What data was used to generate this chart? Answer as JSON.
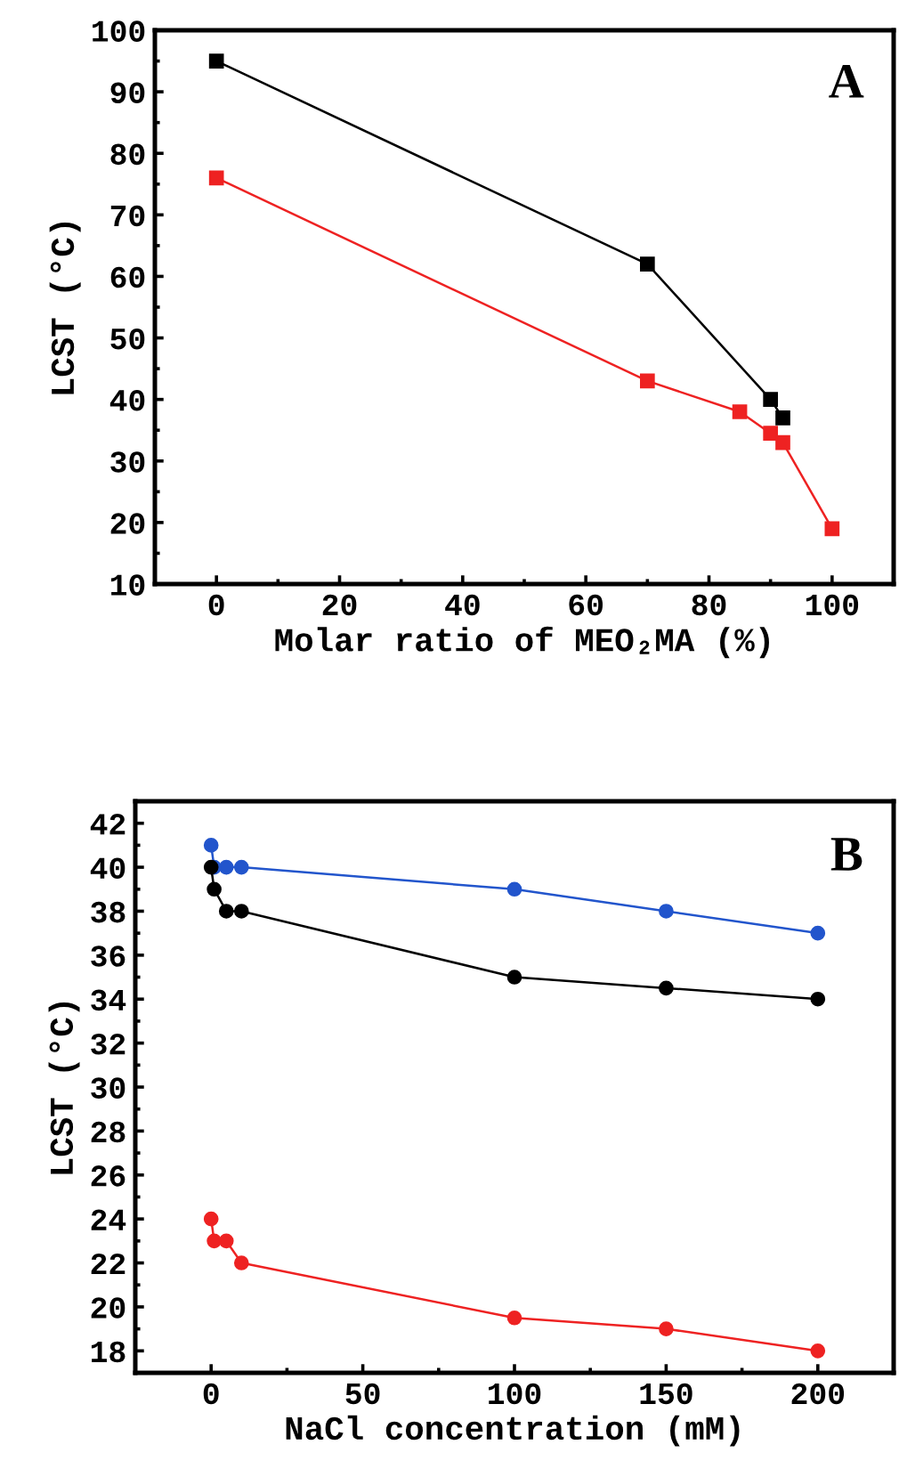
{
  "chart_data": [
    {
      "type": "line",
      "xlabel": "Molar ratio of MEO₂MA (%)",
      "ylabel": "LCST (°C)",
      "annotations": [
        "A"
      ],
      "xlim": [
        -10,
        110
      ],
      "xticks": [
        0,
        20,
        40,
        60,
        80,
        100
      ],
      "ylim": [
        10,
        100
      ],
      "yticks": [
        10,
        20,
        30,
        40,
        50,
        60,
        70,
        80,
        90,
        100
      ],
      "marker": "square",
      "line_style": "solid",
      "grid": false,
      "legend": false,
      "series": [
        {
          "color": "#000000",
          "x": [
            0,
            70,
            90,
            92
          ],
          "values": [
            95,
            62,
            40,
            37
          ]
        },
        {
          "color": "#ee2222",
          "x": [
            0,
            70,
            85,
            90,
            92,
            100
          ],
          "values": [
            76,
            43,
            38,
            34.5,
            33,
            19
          ]
        }
      ]
    },
    {
      "type": "line",
      "xlabel": "NaCl concentration (mM)",
      "ylabel": "LCST (°C)",
      "annotations": [
        "B"
      ],
      "xlim": [
        -25,
        225
      ],
      "xticks": [
        0,
        50,
        100,
        150,
        200
      ],
      "ylim": [
        17,
        43
      ],
      "yticks": [
        18,
        20,
        22,
        24,
        26,
        28,
        30,
        32,
        34,
        36,
        38,
        40,
        42
      ],
      "marker": "circle",
      "line_style": "solid",
      "grid": false,
      "legend": false,
      "series": [
        {
          "color": "#2255cc",
          "x": [
            0,
            1,
            5,
            10,
            100,
            150,
            200
          ],
          "values": [
            41,
            40,
            40,
            40,
            39,
            38,
            37
          ]
        },
        {
          "color": "#000000",
          "x": [
            0,
            1,
            5,
            10,
            100,
            150,
            200
          ],
          "values": [
            40,
            39,
            38,
            38,
            35,
            34.5,
            34
          ]
        },
        {
          "color": "#ee2222",
          "x": [
            0,
            1,
            5,
            10,
            100,
            150,
            200
          ],
          "values": [
            24,
            23,
            23,
            22,
            19.5,
            19,
            18
          ]
        }
      ]
    }
  ]
}
